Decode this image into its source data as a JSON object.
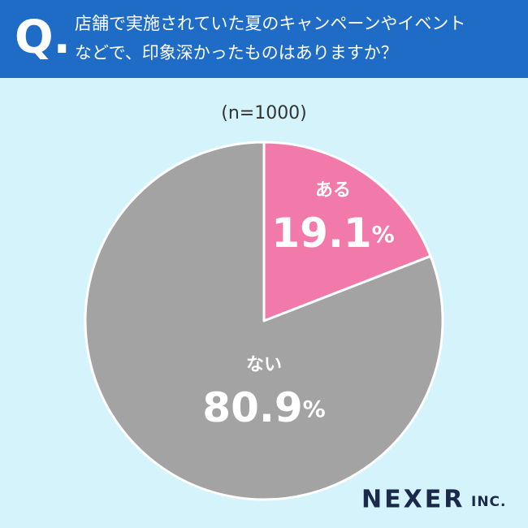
{
  "question_label": "Q.",
  "chart_data": {
    "type": "pie",
    "title_lines": [
      "店舗で実施されていた夏のキャンペーンやイベント",
      "などで、印象深かったものはありますか？"
    ],
    "subtitle": "(n=1000)",
    "categories": [
      "ある",
      "ない"
    ],
    "values": [
      19.1,
      80.9
    ],
    "value_labels": [
      "19.1%",
      "80.9%"
    ],
    "colors": [
      "#f27aaa",
      "#a3a3a3"
    ]
  },
  "logo": {
    "name": "NEXER",
    "suffix": "INC."
  }
}
